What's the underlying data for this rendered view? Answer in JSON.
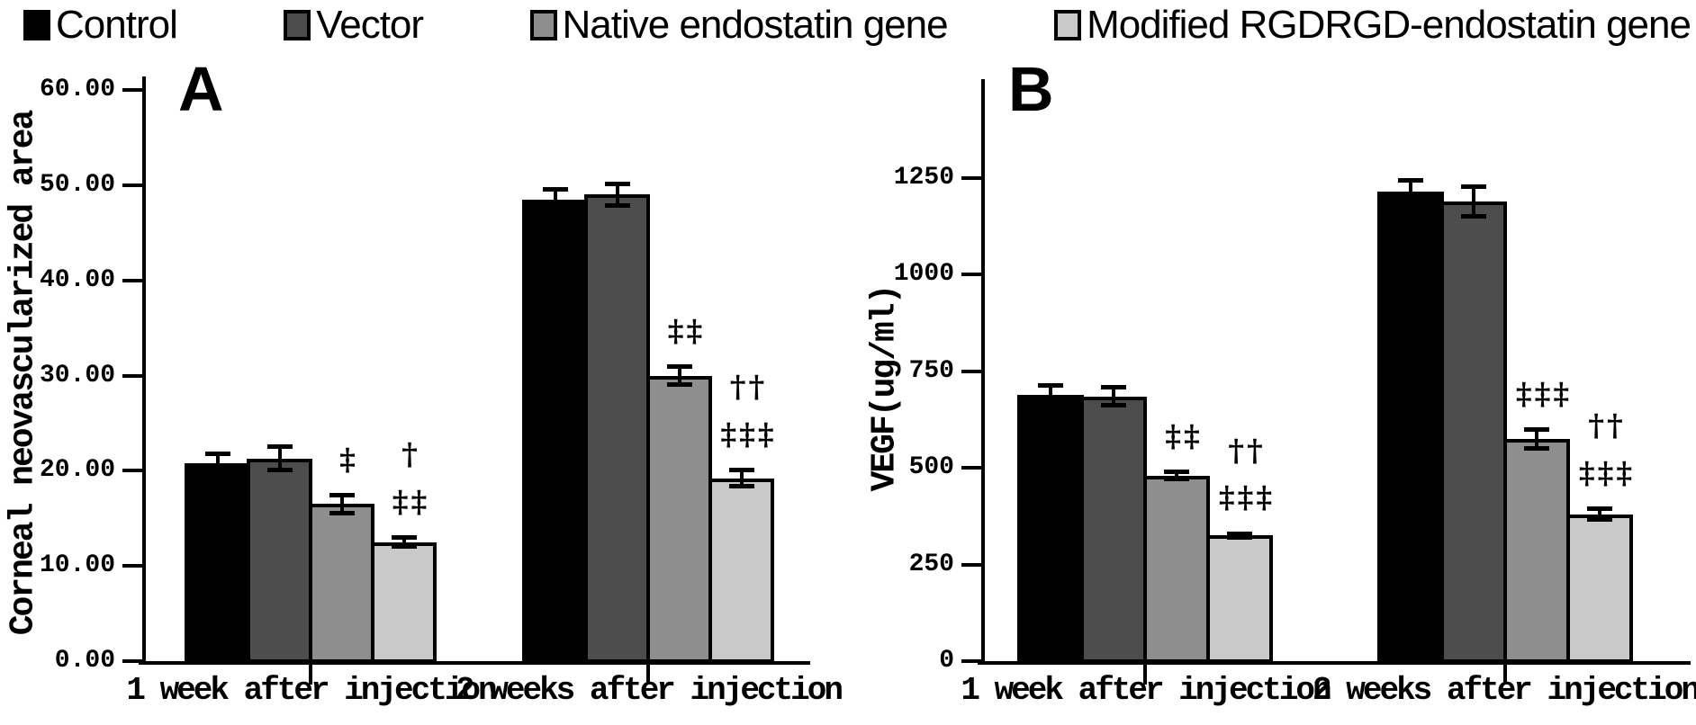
{
  "figure": {
    "background": "#ffffff",
    "legend": {
      "position": "top",
      "items": [
        {
          "label": "Control",
          "color": "#000000"
        },
        {
          "label": "Vector",
          "color": "#4d4d4d"
        },
        {
          "label": "Native endostatin gene",
          "color": "#8e8e8e"
        },
        {
          "label": "Modified RGDRGD-endostatin gene",
          "color": "#c9c9c9"
        }
      ]
    }
  },
  "chart_data": [
    {
      "type": "bar",
      "panel": "A",
      "title": "",
      "xlabel": "",
      "ylabel": "Corneal neovascularized area",
      "ylim": [
        0,
        61.5
      ],
      "grid": false,
      "yticks": [
        {
          "value": 0,
          "label": "0.00"
        },
        {
          "value": 10,
          "label": "10.00"
        },
        {
          "value": 20,
          "label": "20.00"
        },
        {
          "value": 30,
          "label": "30.00"
        },
        {
          "value": 40,
          "label": "40.00"
        },
        {
          "value": 50,
          "label": "50.00"
        },
        {
          "value": 60,
          "label": "60.00"
        }
      ],
      "categories": [
        "1 week after injection",
        "2 weeks after injection"
      ],
      "series": [
        {
          "name": "Control",
          "color": "#000000",
          "values": [
            20.8,
            48.5
          ],
          "errors": [
            1.0,
            1.1
          ],
          "annotations": [
            "",
            ""
          ]
        },
        {
          "name": "Vector",
          "color": "#4d4d4d",
          "values": [
            21.3,
            49.0
          ],
          "errors": [
            1.3,
            1.2
          ],
          "annotations": [
            "",
            ""
          ]
        },
        {
          "name": "Native endostatin gene",
          "color": "#8e8e8e",
          "values": [
            16.5,
            30.0
          ],
          "errors": [
            1.0,
            1.0
          ],
          "annotations": [
            "‡",
            "‡‡"
          ]
        },
        {
          "name": "Modified RGDRGD-endostatin gene",
          "color": "#c9c9c9",
          "values": [
            12.5,
            19.2
          ],
          "errors": [
            0.5,
            0.9
          ],
          "annotations": [
            "†\n‡‡",
            "††\n‡‡‡"
          ]
        }
      ]
    },
    {
      "type": "bar",
      "panel": "B",
      "title": "",
      "xlabel": "",
      "ylabel": "VEGF(ug/ml)",
      "ylim": [
        0,
        1500
      ],
      "grid": false,
      "yticks": [
        {
          "value": 0,
          "label": "0"
        },
        {
          "value": 250,
          "label": "250"
        },
        {
          "value": 500,
          "label": "500"
        },
        {
          "value": 750,
          "label": "750"
        },
        {
          "value": 1000,
          "label": "1000"
        },
        {
          "value": 1250,
          "label": "1250"
        }
      ],
      "categories": [
        "1 week after injection",
        "2 weeks after injection"
      ],
      "series": [
        {
          "name": "Control",
          "color": "#000000",
          "values": [
            690,
            1215
          ],
          "errors": [
            25,
            30
          ],
          "annotations": [
            "",
            ""
          ]
        },
        {
          "name": "Vector",
          "color": "#4d4d4d",
          "values": [
            685,
            1190
          ],
          "errors": [
            25,
            40
          ],
          "annotations": [
            "",
            ""
          ]
        },
        {
          "name": "Native endostatin gene",
          "color": "#8e8e8e",
          "values": [
            480,
            575
          ],
          "errors": [
            10,
            25
          ],
          "annotations": [
            "‡‡",
            "‡‡‡"
          ]
        },
        {
          "name": "Modified RGDRGD-endostatin gene",
          "color": "#c9c9c9",
          "values": [
            325,
            380
          ],
          "errors": [
            6,
            15
          ],
          "annotations": [
            "††\n‡‡‡",
            "††\n‡‡‡"
          ]
        }
      ]
    }
  ]
}
